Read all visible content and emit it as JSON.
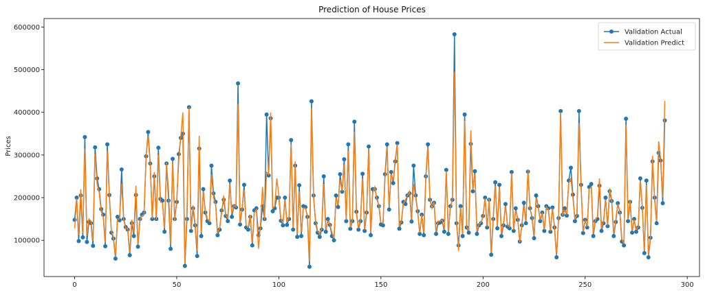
{
  "chart_data": {
    "type": "line",
    "title": "Prediction of House Prices",
    "xlabel": "",
    "ylabel": "Prices",
    "xlim": [
      -15,
      306
    ],
    "ylim": [
      15000,
      620000
    ],
    "x_ticks": [
      0,
      50,
      100,
      150,
      200,
      250,
      300
    ],
    "y_ticks": [
      100000,
      200000,
      300000,
      400000,
      500000,
      600000
    ],
    "legend_position": "top-right",
    "series": [
      {
        "name": "Validation Actual",
        "color": "#1f77b4",
        "marker": "circle",
        "values": [
          148000,
          200000,
          98000,
          205000,
          107000,
          342000,
          96000,
          143000,
          140000,
          87000,
          318000,
          245000,
          220000,
          173000,
          160000,
          86000,
          325000,
          206000,
          118000,
          104000,
          57000,
          155000,
          147000,
          266000,
          150000,
          131000,
          125000,
          65000,
          140000,
          110000,
          206000,
          85000,
          150000,
          160000,
          165000,
          297000,
          354000,
          280000,
          150000,
          250000,
          150000,
          317000,
          197000,
          193000,
          120000,
          280000,
          193000,
          80000,
          291000,
          150000,
          190000,
          302000,
          340000,
          350000,
          40000,
          150000,
          412000,
          122000,
          175000,
          135000,
          63000,
          315000,
          110000,
          220000,
          165000,
          145000,
          140000,
          275000,
          210000,
          190000,
          112000,
          125000,
          170000,
          195000,
          157000,
          145000,
          240000,
          155000,
          180000,
          177000,
          468000,
          137000,
          172000,
          230000,
          130000,
          125000,
          155000,
          88000,
          170000,
          175000,
          112000,
          128000,
          180000,
          150000,
          395000,
          252000,
          386000,
          168000,
          175000,
          200000,
          200000,
          146000,
          135000,
          200000,
          136000,
          150000,
          335000,
          125000,
          275000,
          108000,
          229000,
          110000,
          180000,
          178000,
          155000,
          38000,
          426000,
          205000,
          140000,
          118000,
          108000,
          125000,
          250000,
          120000,
          150000,
          136000,
          110000,
          100000,
          205000,
          178000,
          255000,
          214000,
          290000,
          145000,
          325000,
          127000,
          145000,
          378000,
          167000,
          125000,
          145000,
          256000,
          122000,
          165000,
          320000,
          112000,
          220000,
          220000,
          200000,
          180000,
          137000,
          135000,
          255000,
          325000,
          172000,
          260000,
          234000,
          285000,
          328000,
          127000,
          142000,
          190000,
          185000,
          205000,
          210000,
          144000,
          275000,
          205000,
          168000,
          115000,
          160000,
          112000,
          250000,
          325000,
          195000,
          180000,
          188000,
          115000,
          140000,
          142000,
          146000,
          120000,
          265000,
          115000,
          180000,
          195000,
          583000,
          140000,
          88000,
          180000,
          110000,
          395000,
          130000,
          118000,
          326000,
          215000,
          262000,
          115000,
          135000,
          140000,
          157000,
          200000,
          130000,
          195000,
          66000,
          150000,
          236000,
          128000,
          230000,
          110000,
          135000,
          185000,
          132000,
          128000,
          260000,
          122000,
          175000,
          148000,
          97000,
          135000,
          188000,
          140000,
          261000,
          175000,
          152000,
          105000,
          205000,
          180000,
          145000,
          165000,
          122000,
          180000,
          175000,
          120000,
          177000,
          130000,
          60000,
          152000,
          403000,
          160000,
          175000,
          158000,
          240000,
          270000,
          207000,
          145000,
          157000,
          403000,
          230000,
          117000,
          148000,
          130000,
          225000,
          232000,
          110000,
          145000,
          150000,
          228000,
          122000,
          140000,
          200000,
          133000,
          215000,
          192000,
          110000,
          143000,
          187000,
          165000,
          97000,
          88000,
          385000,
          145000,
          190000,
          118000,
          150000,
          120000,
          130000,
          245000,
          176000,
          70000,
          240000,
          60000,
          106000,
          285000,
          200000,
          140000,
          305000,
          287000,
          187000,
          381000
        ]
      },
      {
        "name": "Validation Predict",
        "color": "#ff7f0e",
        "marker": "none",
        "values": [
          128000,
          198000,
          112000,
          220000,
          116000,
          315000,
          110000,
          150000,
          145000,
          98000,
          302000,
          232000,
          212000,
          168000,
          155000,
          94000,
          310000,
          200000,
          122000,
          108000,
          62000,
          148000,
          152000,
          232000,
          148000,
          128000,
          128000,
          72000,
          148000,
          118000,
          228000,
          90000,
          148000,
          158000,
          160000,
          298000,
          345000,
          276000,
          150000,
          260000,
          148000,
          300000,
          190000,
          188000,
          128000,
          282000,
          215000,
          90000,
          285000,
          145000,
          195000,
          288000,
          345000,
          400000,
          45000,
          165000,
          412000,
          125000,
          182000,
          140000,
          75000,
          345000,
          118000,
          215000,
          170000,
          150000,
          145000,
          255000,
          200000,
          185000,
          118000,
          128000,
          165000,
          205000,
          160000,
          150000,
          232000,
          162000,
          182000,
          178000,
          420000,
          140000,
          175000,
          218000,
          135000,
          130000,
          160000,
          95000,
          165000,
          172000,
          80000,
          135000,
          225000,
          148000,
          260000,
          255000,
          400000,
          175000,
          180000,
          245000,
          205000,
          150000,
          140000,
          195000,
          142000,
          155000,
          325000,
          130000,
          285000,
          115000,
          215000,
          118000,
          176000,
          175000,
          158000,
          50000,
          410000,
          200000,
          145000,
          122000,
          115000,
          128000,
          232000,
          125000,
          145000,
          138000,
          118000,
          105000,
          200000,
          183000,
          242000,
          215000,
          278000,
          148000,
          310000,
          130000,
          148000,
          355000,
          162000,
          128000,
          150000,
          245000,
          125000,
          170000,
          315000,
          118000,
          212000,
          225000,
          195000,
          183000,
          142000,
          140000,
          245000,
          318000,
          178000,
          255000,
          240000,
          290000,
          325000,
          132000,
          145000,
          185000,
          195000,
          205000,
          215000,
          150000,
          232000,
          200000,
          165000,
          118000,
          160000,
          118000,
          248000,
          318000,
          195000,
          175000,
          190000,
          120000,
          145000,
          145000,
          148000,
          125000,
          262000,
          120000,
          175000,
          198000,
          495000,
          148000,
          75000,
          178000,
          115000,
          380000,
          132000,
          122000,
          358000,
          218000,
          255000,
          120000,
          138000,
          142000,
          155000,
          198000,
          132000,
          198000,
          72000,
          155000,
          228000,
          132000,
          225000,
          115000,
          140000,
          180000,
          135000,
          132000,
          258000,
          125000,
          170000,
          152000,
          95000,
          135000,
          182000,
          145000,
          265000,
          175000,
          155000,
          110000,
          200000,
          178000,
          148000,
          165000,
          125000,
          178000,
          172000,
          122000,
          175000,
          132000,
          65000,
          155000,
          400000,
          158000,
          170000,
          162000,
          235000,
          245000,
          200000,
          150000,
          160000,
          375000,
          225000,
          120000,
          148000,
          132000,
          220000,
          225000,
          115000,
          148000,
          155000,
          245000,
          128000,
          145000,
          195000,
          135000,
          222000,
          195000,
          115000,
          148000,
          185000,
          168000,
          102000,
          92000,
          370000,
          148000,
          195000,
          122000,
          148000,
          125000,
          132000,
          240000,
          178000,
          75000,
          230000,
          65000,
          110000,
          298000,
          195000,
          145000,
          332000,
          290000,
          200000,
          427000
        ]
      }
    ]
  }
}
